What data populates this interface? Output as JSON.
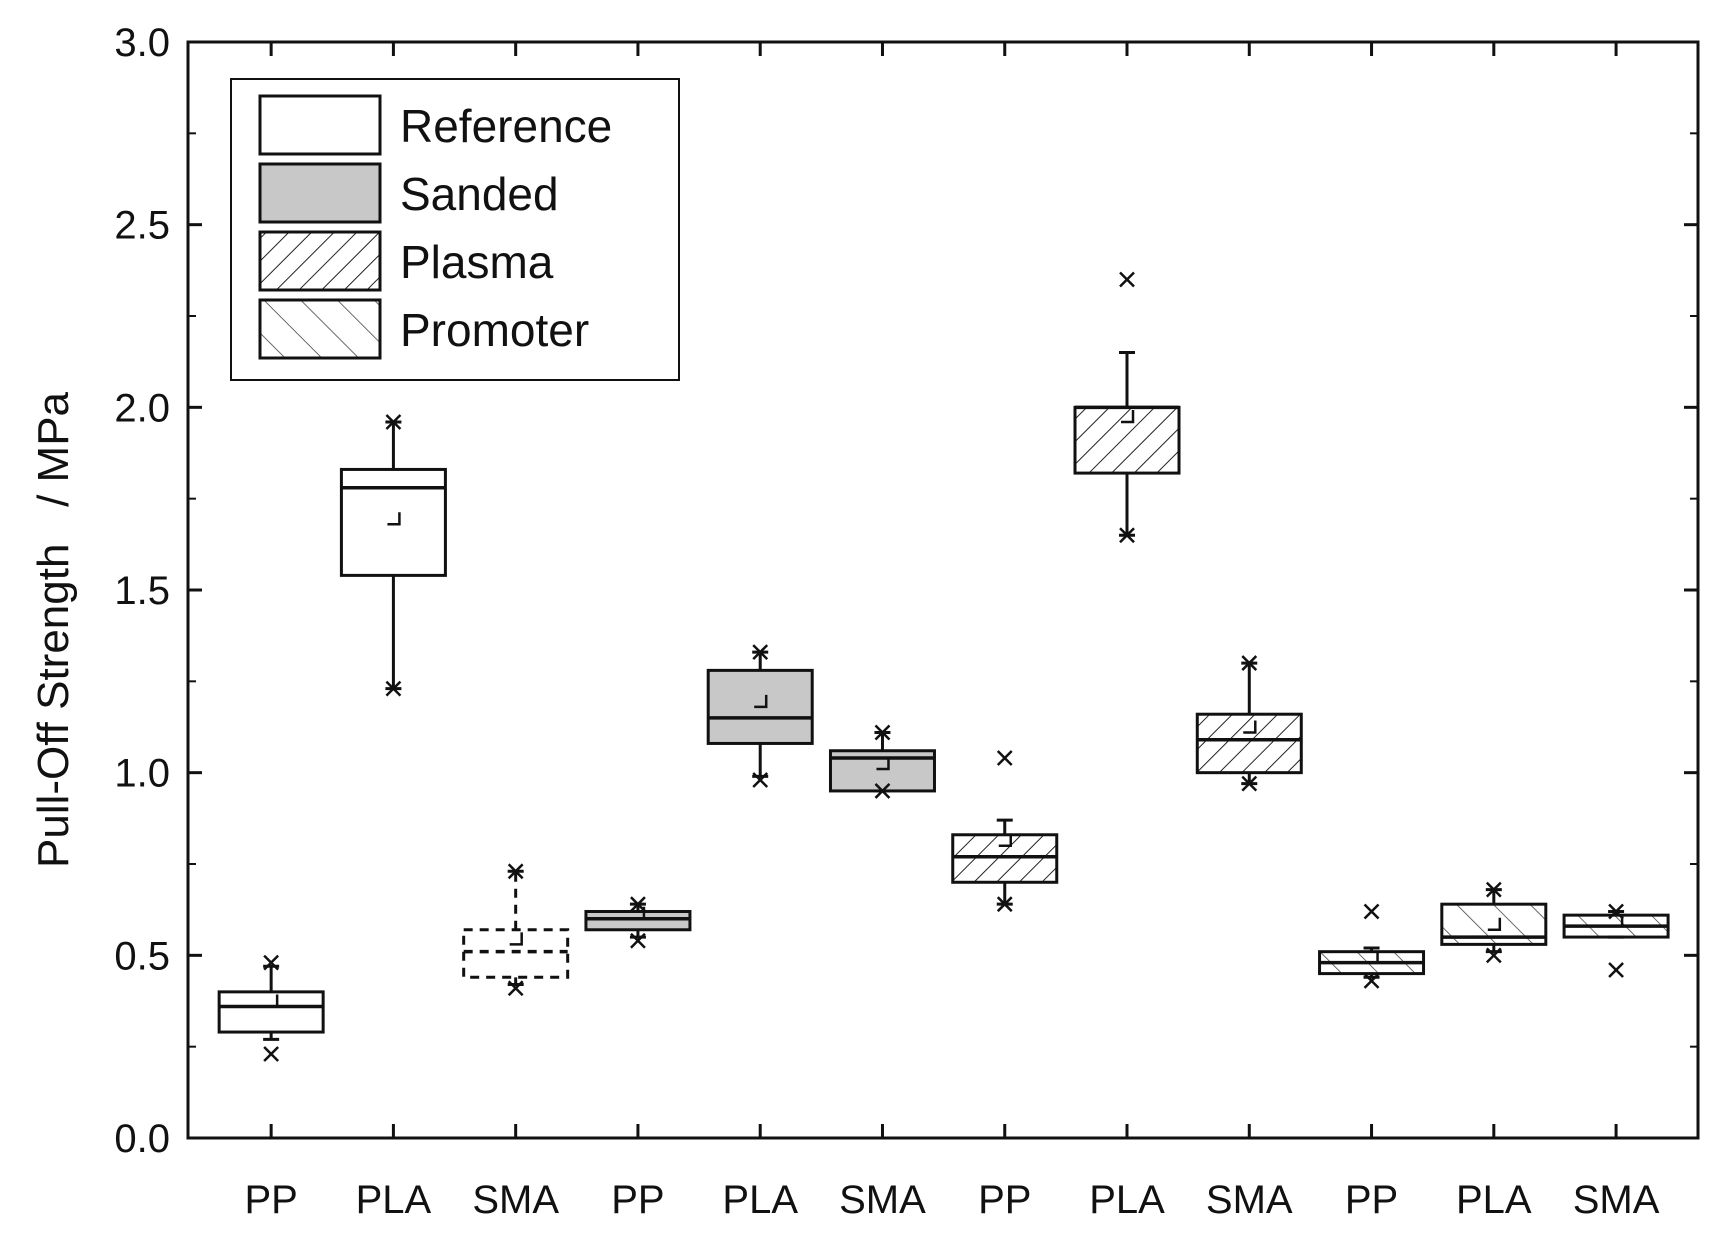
{
  "chart_data": {
    "type": "box",
    "title": "",
    "xlabel": "",
    "ylabel": "Pull-Off Strength   / MPa",
    "ylim": [
      0.0,
      3.0
    ],
    "yticks": [
      "0.0",
      "0.5",
      "1.0",
      "1.5",
      "2.0",
      "2.5",
      "3.0"
    ],
    "grid": false,
    "legend_position": "top-left",
    "colors": {
      "sanded_fill": "#c8c8c8",
      "stroke": "#111111",
      "background": "#ffffff"
    },
    "legend": [
      {
        "label": "Reference",
        "fill": "none"
      },
      {
        "label": "Sanded",
        "fill": "gray"
      },
      {
        "label": "Plasma",
        "fill": "hatch-forward"
      },
      {
        "label": "Promoter",
        "fill": "hatch-backward"
      }
    ],
    "categories": [
      "PP",
      "PLA",
      "SMA",
      "PP",
      "PLA",
      "SMA",
      "PP",
      "PLA",
      "SMA",
      "PP",
      "PLA",
      "SMA"
    ],
    "boxes": [
      {
        "group": "Reference",
        "material": "PP",
        "fill": "none",
        "dashed": false,
        "whisker_low": 0.27,
        "q1": 0.29,
        "median": 0.36,
        "q3": 0.4,
        "whisker_high": 0.47,
        "mean": 0.36,
        "outliers": [
          0.23,
          0.48
        ]
      },
      {
        "group": "Reference",
        "material": "PLA",
        "fill": "none",
        "dashed": false,
        "whisker_low": 1.23,
        "q1": 1.54,
        "median": 1.78,
        "q3": 1.83,
        "whisker_high": 1.96,
        "mean": 1.68,
        "outliers": [
          1.23,
          1.96
        ]
      },
      {
        "group": "Reference",
        "material": "SMA",
        "fill": "none",
        "dashed": true,
        "whisker_low": 0.42,
        "q1": 0.44,
        "median": 0.51,
        "q3": 0.57,
        "whisker_high": 0.73,
        "mean": 0.53,
        "outliers": [
          0.41,
          0.73
        ]
      },
      {
        "group": "Sanded",
        "material": "PP",
        "fill": "gray",
        "dashed": false,
        "whisker_low": 0.55,
        "q1": 0.57,
        "median": 0.6,
        "q3": 0.62,
        "whisker_high": 0.64,
        "mean": 0.6,
        "outliers": [
          0.54,
          0.64
        ]
      },
      {
        "group": "Sanded",
        "material": "PLA",
        "fill": "gray",
        "dashed": false,
        "whisker_low": 0.99,
        "q1": 1.08,
        "median": 1.15,
        "q3": 1.28,
        "whisker_high": 1.33,
        "mean": 1.18,
        "outliers": [
          0.98,
          1.33
        ]
      },
      {
        "group": "Sanded",
        "material": "SMA",
        "fill": "gray",
        "dashed": false,
        "whisker_low": 0.95,
        "q1": 0.95,
        "median": 1.04,
        "q3": 1.06,
        "whisker_high": 1.11,
        "mean": 1.01,
        "outliers": [
          0.95,
          1.11
        ]
      },
      {
        "group": "Plasma",
        "material": "PP",
        "fill": "hatch-forward",
        "dashed": false,
        "whisker_low": 0.64,
        "q1": 0.7,
        "median": 0.77,
        "q3": 0.83,
        "whisker_high": 0.87,
        "mean": 0.8,
        "outliers": [
          0.64,
          1.04
        ]
      },
      {
        "group": "Plasma",
        "material": "PLA",
        "fill": "hatch-forward",
        "dashed": false,
        "whisker_low": 1.65,
        "q1": 1.82,
        "median": 2.0,
        "q3": 2.0,
        "whisker_high": 2.15,
        "mean": 1.96,
        "outliers": [
          1.65,
          2.35
        ]
      },
      {
        "group": "Plasma",
        "material": "SMA",
        "fill": "hatch-forward",
        "dashed": false,
        "whisker_low": 0.97,
        "q1": 1.0,
        "median": 1.09,
        "q3": 1.16,
        "whisker_high": 1.3,
        "mean": 1.11,
        "outliers": [
          0.97,
          1.3
        ]
      },
      {
        "group": "Promoter",
        "material": "PP",
        "fill": "hatch-backward",
        "dashed": false,
        "whisker_low": 0.44,
        "q1": 0.45,
        "median": 0.48,
        "q3": 0.51,
        "whisker_high": 0.52,
        "mean": 0.48,
        "outliers": [
          0.43,
          0.62
        ]
      },
      {
        "group": "Promoter",
        "material": "PLA",
        "fill": "hatch-backward",
        "dashed": false,
        "whisker_low": 0.51,
        "q1": 0.53,
        "median": 0.55,
        "q3": 0.64,
        "whisker_high": 0.68,
        "mean": 0.57,
        "outliers": [
          0.5,
          0.68
        ]
      },
      {
        "group": "Promoter",
        "material": "SMA",
        "fill": "hatch-backward",
        "dashed": false,
        "whisker_low": 0.55,
        "q1": 0.55,
        "median": 0.58,
        "q3": 0.61,
        "whisker_high": 0.62,
        "mean": 0.58,
        "outliers": [
          0.46,
          0.62
        ]
      }
    ]
  }
}
